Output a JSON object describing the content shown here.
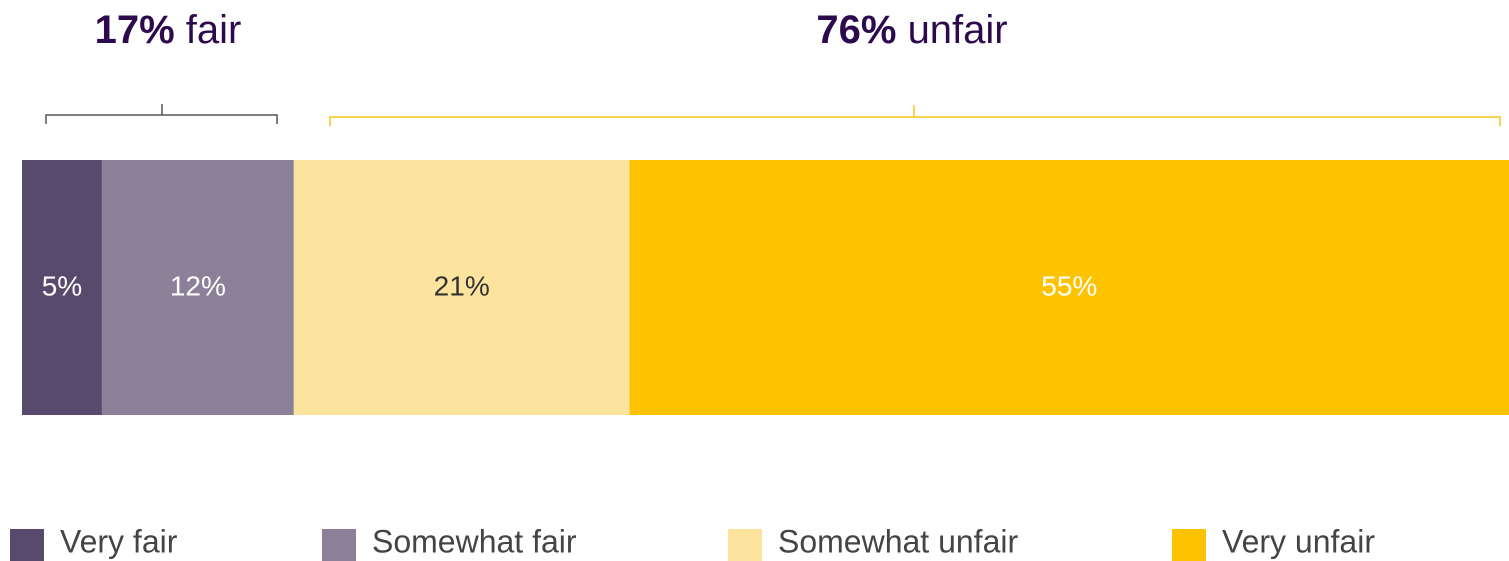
{
  "chart_data": {
    "type": "stacked_bar_100",
    "annotations": [
      {
        "label": "17%",
        "text": "fair",
        "color": "#555555"
      },
      {
        "label": "76%",
        "text": "unfair",
        "color": "#f5c518"
      }
    ],
    "series": [
      {
        "name": "Very fair",
        "color": "#584a6c",
        "label_color": "#ffffff",
        "values": [
          5
        ],
        "value_labels": [
          "5%"
        ]
      },
      {
        "name": "Somewhat fair",
        "color": "#8b8098",
        "label_color": "#ffffff",
        "values": [
          12
        ],
        "value_labels": [
          "12%"
        ]
      },
      {
        "name": "Somewhat unfair",
        "color": "#fde49e",
        "label_color": "#333333",
        "values": [
          21
        ],
        "value_labels": [
          "21%"
        ]
      },
      {
        "name": "Very unfair",
        "color": "#fdc300",
        "label_color": "#ffffff",
        "values": [
          55
        ],
        "value_labels": [
          "55%"
        ]
      }
    ],
    "xlim": [
      0,
      93
    ]
  }
}
